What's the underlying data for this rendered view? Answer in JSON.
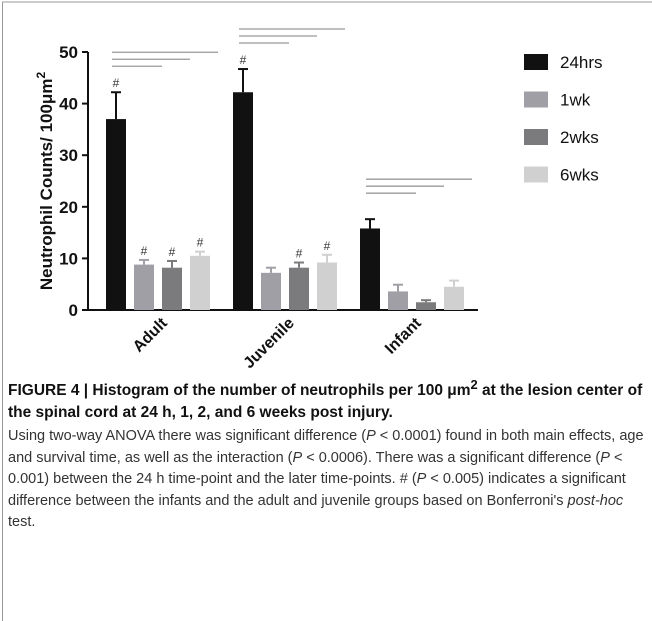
{
  "chart_data": {
    "type": "bar",
    "ylabel": "Neutrophil Counts/ 100μm",
    "ylabel_sup": "2",
    "categories": [
      "Adult",
      "Juvenile",
      "Infant"
    ],
    "series": [
      {
        "name": "24hrs",
        "color": "#111111",
        "values": [
          37,
          42.2,
          15.8
        ],
        "errors": [
          5.2,
          4.5,
          1.8
        ],
        "markers": [
          "#",
          "#",
          null
        ]
      },
      {
        "name": "1wk",
        "color": "#a09fa6",
        "values": [
          8.8,
          7.2,
          3.6
        ],
        "errors": [
          0.9,
          1.0,
          1.3
        ],
        "markers": [
          "#",
          null,
          null
        ]
      },
      {
        "name": "2wks",
        "color": "#7b7b7d",
        "values": [
          8.2,
          8.2,
          1.5
        ],
        "errors": [
          1.3,
          1.0,
          0.4
        ],
        "markers": [
          "#",
          "#",
          null
        ]
      },
      {
        "name": "6wks",
        "color": "#d0d0d0",
        "values": [
          10.5,
          9.2,
          4.5
        ],
        "errors": [
          0.8,
          1.5,
          1.2
        ],
        "markers": [
          "#",
          "#",
          null
        ]
      }
    ],
    "ylim": [
      0,
      50
    ],
    "yticks": [
      0,
      10,
      20,
      30,
      40,
      50
    ],
    "legend": "right"
  },
  "caption": {
    "bold": [
      "FIGURE 4 | Histogram of the number of neutrophils per 100 μm",
      "2",
      " at the lesion center of the spinal cord at 24 h, 1, 2, and 6 weeks post injury."
    ],
    "body": [
      "Using two-way ANOVA there was significant difference (",
      {
        "italic": "P"
      },
      " < 0.0001) found in both main effects, age and survival time, as well as the interaction (",
      {
        "italic": "P"
      },
      " < 0.0006). There was a significant difference (",
      {
        "italic": "P"
      },
      " < 0.001) between the 24 h time-point and the later time-points. # (",
      {
        "italic": "P"
      },
      " < 0.005) indicates a significant difference between the infants and the adult and juvenile groups based on Bonferroni's ",
      {
        "italic": "post-hoc"
      },
      " test."
    ]
  }
}
